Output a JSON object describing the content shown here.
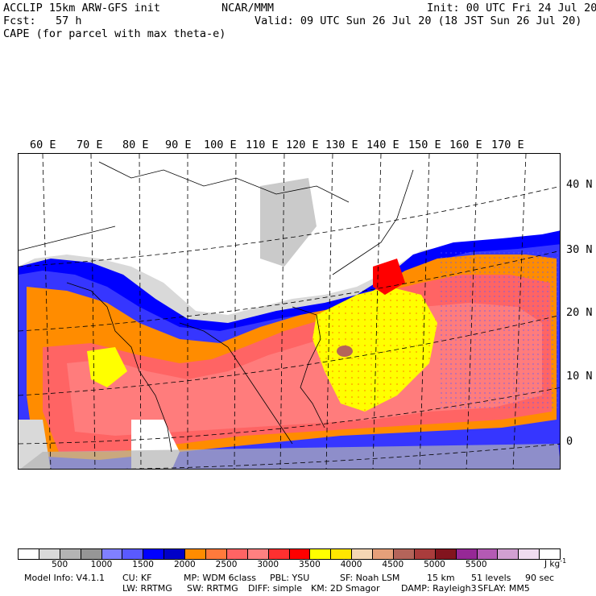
{
  "header": {
    "model": "ACCLIP 15km ARW-GFS init",
    "org": "NCAR/MMM",
    "init": "Init: 00 UTC Fri 24 Jul 20",
    "fcst": "Fcst:   57 h",
    "valid": "Valid: 09 UTC Sun 26 Jul 20 (18 JST Sun 26 Jul 20)",
    "field": "CAPE (for parcel with max theta-e)"
  },
  "map": {
    "lon_labels": [
      "60 E",
      "70 E",
      "80 E",
      "90 E",
      "100 E",
      "110 E",
      "120 E",
      "130 E",
      "140 E",
      "150 E",
      "160 E",
      "170 E"
    ],
    "lat_labels": [
      "40 N",
      "30 N",
      "20 N",
      "10 N",
      "0"
    ]
  },
  "colorbar": {
    "colors": [
      "#ffffff",
      "#d9d9d9",
      "#b4b4b4",
      "#969696",
      "#8080ff",
      "#5a5aff",
      "#0000ff",
      "#0000c8",
      "#ff8c00",
      "#ff7a3c",
      "#ff6464",
      "#ff8080",
      "#ff3030",
      "#ff0000",
      "#ffff00",
      "#ffe600",
      "#f5d7b4",
      "#e6a07a",
      "#b4645a",
      "#aa3c3c",
      "#82141e",
      "#962896",
      "#b45ab4",
      "#d2a0d2",
      "#f0dcf0",
      "#ffffff"
    ],
    "labels": [
      "500",
      "1000",
      "1500",
      "2000",
      "2500",
      "3000",
      "3500",
      "4000",
      "4500",
      "5000",
      "5500"
    ],
    "units": "J kg",
    "units_exp": "-1"
  },
  "footer": {
    "line1": [
      "Model Info: V4.1.1",
      "CU: KF",
      "MP: WDM 6class",
      "PBL: YSU",
      "SF: Noah LSM",
      "15 km",
      "51 levels",
      "90 sec"
    ],
    "line2": [
      "LW: RRTMG",
      "SW: RRTMG",
      "DIFF: simple",
      "KM: 2D Smagor",
      "DAMP: Rayleigh3",
      "SFLAY: MM5"
    ]
  }
}
